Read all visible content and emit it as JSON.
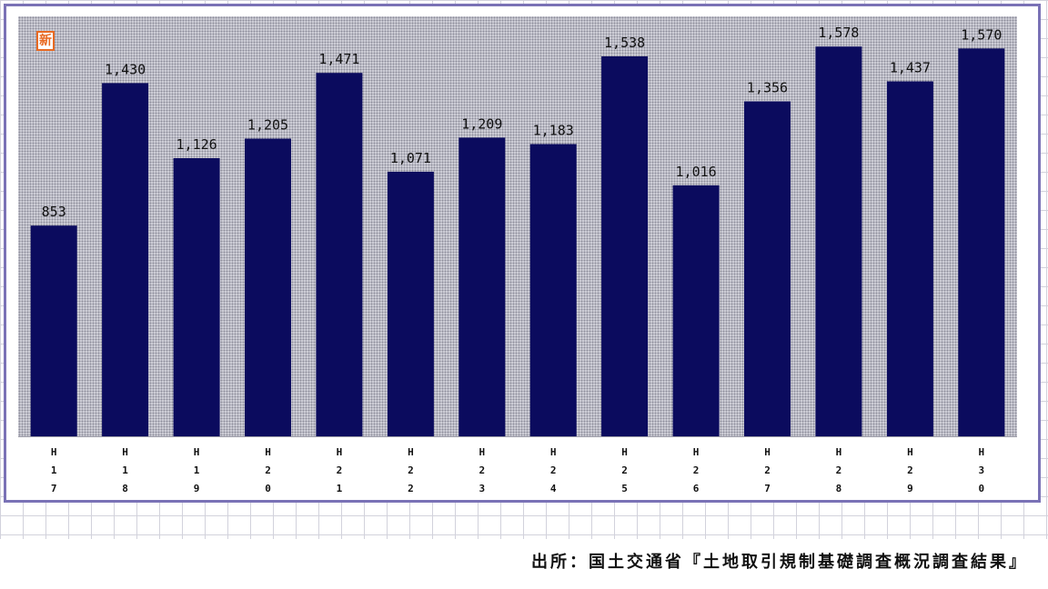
{
  "badge_text": "新",
  "source_note": "出所：国土交通省『土地取引規制基礎調査概況調査結果』",
  "colors": {
    "bar": "#0b0b5e",
    "frame": "#7a72b6",
    "badge": "#e86a23"
  },
  "chart_data": {
    "type": "bar",
    "title": "",
    "xlabel": "",
    "ylabel": "",
    "categories": [
      "H17",
      "H18",
      "H19",
      "H20",
      "H21",
      "H22",
      "H23",
      "H24",
      "H25",
      "H26",
      "H27",
      "H28",
      "H29",
      "H30"
    ],
    "values": [
      853,
      1430,
      1126,
      1205,
      1471,
      1071,
      1209,
      1183,
      1538,
      1016,
      1356,
      1578,
      1437,
      1570
    ],
    "value_labels": [
      "853",
      "1,430",
      "1,126",
      "1,205",
      "1,471",
      "1,071",
      "1,209",
      "1,183",
      "1,538",
      "1,016",
      "1,356",
      "1,578",
      "1,437",
      "1,570"
    ],
    "ylim": [
      0,
      1700
    ],
    "grid": false,
    "legend": "none"
  }
}
